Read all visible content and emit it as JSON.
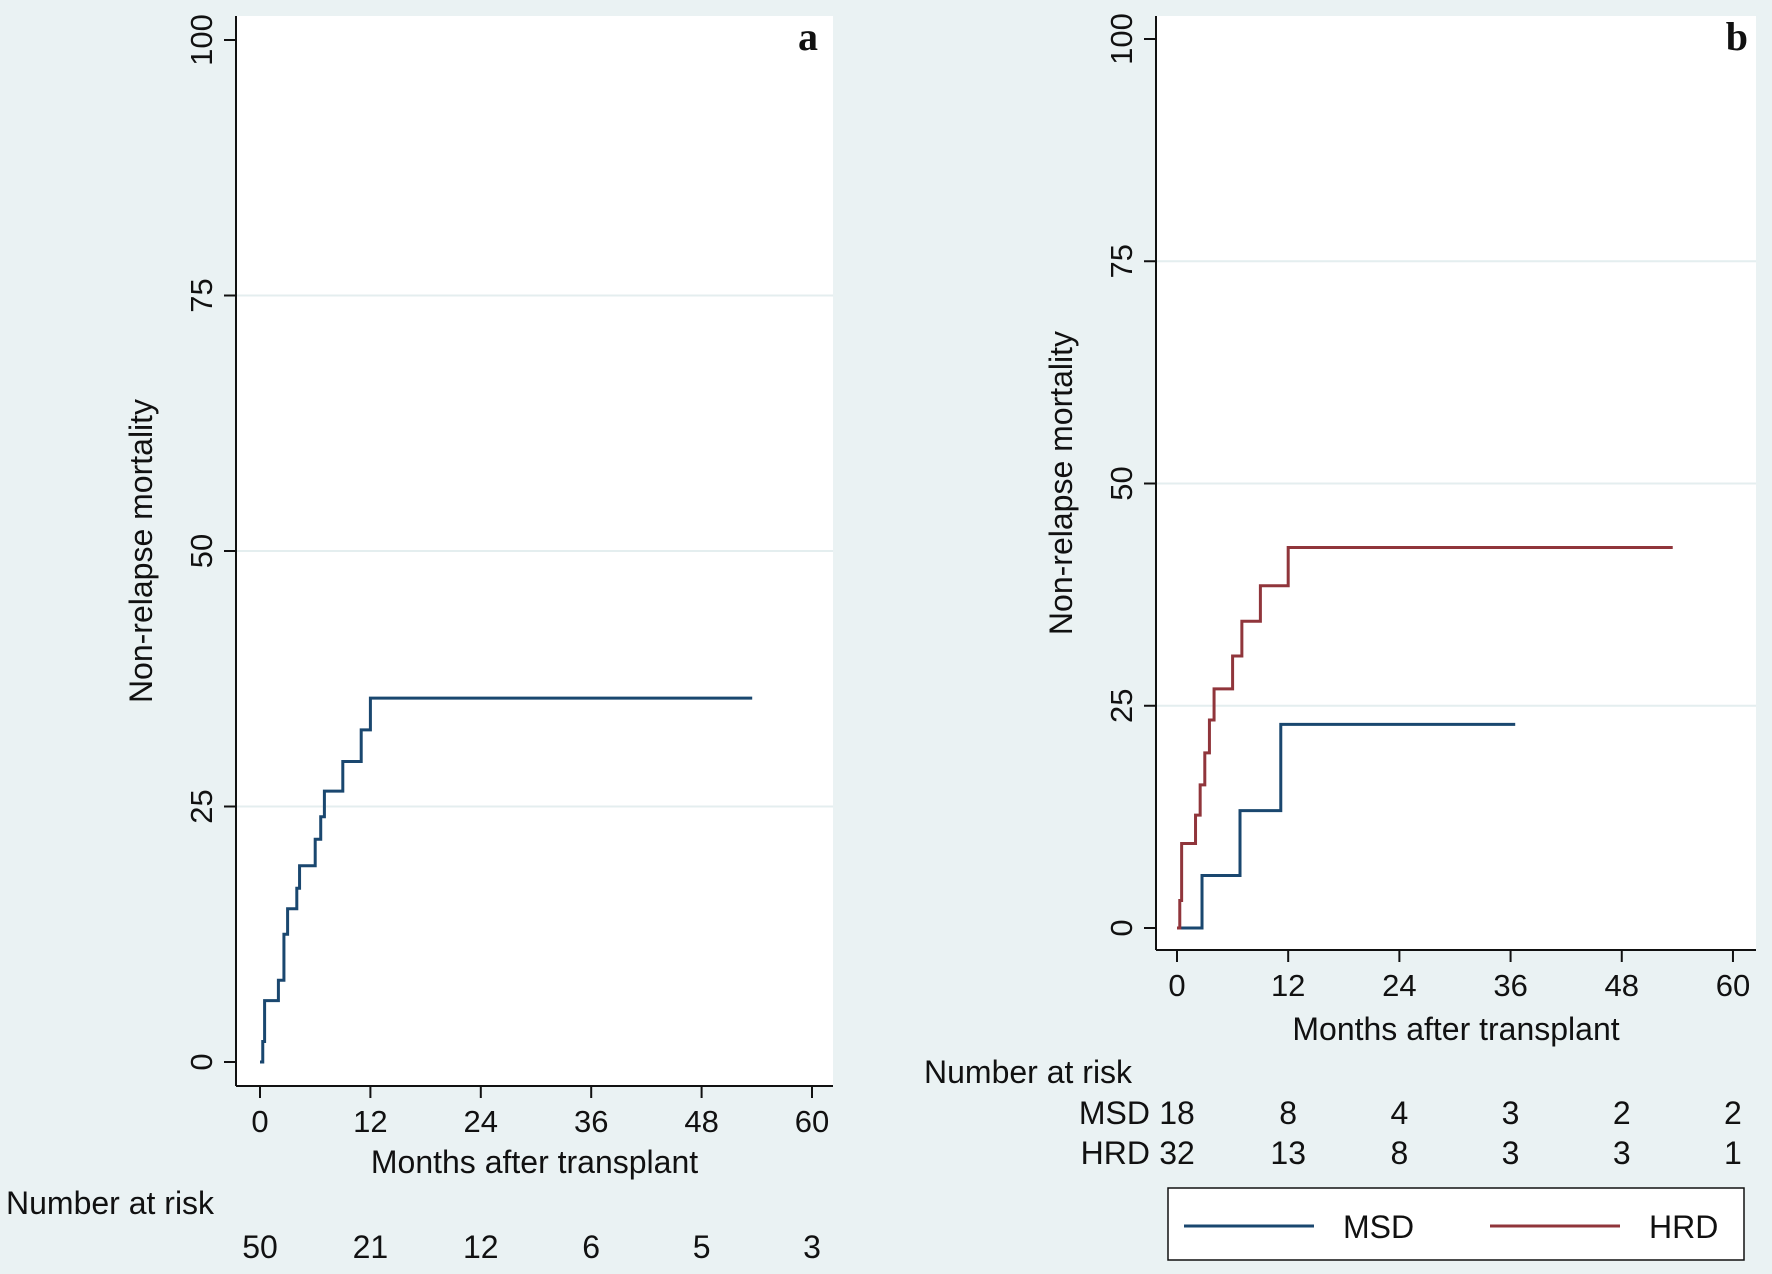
{
  "colors": {
    "background": "#eaf2f3",
    "plot_bg": "#ffffff",
    "grid": "#e4eeef",
    "axis": "#111111",
    "msd": "#1a476f",
    "hrd": "#90353b"
  },
  "chart_data": [
    {
      "type": "line",
      "step": true,
      "panel_label": "a",
      "title": "",
      "xlabel": "Months after transplant",
      "ylabel": "Non-relapse mortality",
      "xlim": [
        0,
        60
      ],
      "ylim": [
        0,
        100
      ],
      "xticks": [
        "0",
        "12",
        "24",
        "36",
        "48",
        "60"
      ],
      "yticks": [
        "0",
        "25",
        "50",
        "75",
        "100"
      ],
      "grid": true,
      "series": [
        {
          "name": "",
          "color": "#1a476f",
          "x": [
            0,
            0.3,
            0.5,
            2,
            2.6,
            3,
            4,
            4.3,
            6,
            6.6,
            7,
            9,
            11,
            12,
            53.5
          ],
          "y": [
            0,
            2,
            6,
            8,
            12.5,
            15,
            17,
            19.2,
            21.8,
            24,
            26.5,
            29.4,
            32.5,
            35.6,
            35.6
          ]
        }
      ],
      "risk_table": {
        "title": "Number at risk",
        "rows": [
          {
            "label": "",
            "values": [
              "50",
              "21",
              "12",
              "6",
              "5",
              "3"
            ]
          }
        ]
      }
    },
    {
      "type": "line",
      "step": true,
      "panel_label": "b",
      "title": "",
      "xlabel": "Months after transplant",
      "ylabel": "Non-relapse mortality",
      "xlim": [
        0,
        60
      ],
      "ylim": [
        0,
        100
      ],
      "xticks": [
        "0",
        "12",
        "24",
        "36",
        "48",
        "60"
      ],
      "yticks": [
        "0",
        "25",
        "50",
        "75",
        "100"
      ],
      "grid": true,
      "legend": {
        "position": "bottom",
        "entries": [
          "MSD",
          "HRD"
        ]
      },
      "series": [
        {
          "name": "MSD",
          "color": "#1a476f",
          "x": [
            0,
            2.7,
            6.8,
            11.2,
            36.5
          ],
          "y": [
            0,
            5.9,
            13.2,
            22.9,
            22.9
          ]
        },
        {
          "name": "HRD",
          "color": "#90353b",
          "x": [
            0,
            0.3,
            0.5,
            2,
            2.5,
            3,
            3.5,
            4,
            6,
            7,
            9,
            12,
            53.5
          ],
          "y": [
            0,
            3.1,
            9.5,
            12.7,
            16.1,
            19.7,
            23.4,
            26.9,
            30.6,
            34.5,
            38.5,
            42.8,
            42.8
          ]
        }
      ],
      "risk_table": {
        "title": "Number at risk",
        "rows": [
          {
            "label": "MSD",
            "values": [
              "18",
              "8",
              "4",
              "3",
              "2",
              "2"
            ]
          },
          {
            "label": "HRD",
            "values": [
              "32",
              "13",
              "8",
              "3",
              "3",
              "1"
            ]
          }
        ]
      }
    }
  ]
}
